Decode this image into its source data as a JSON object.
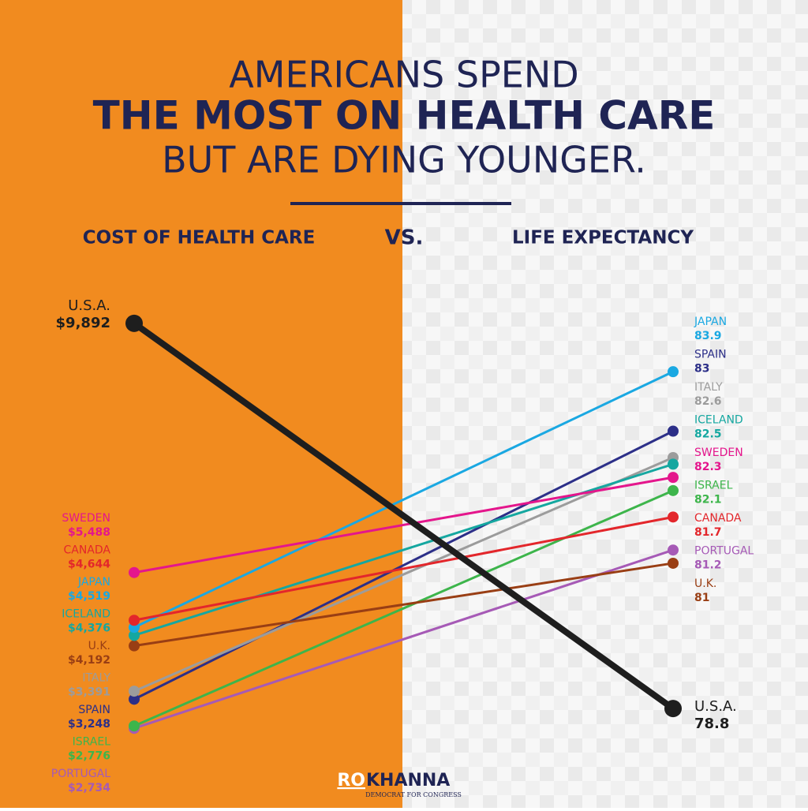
{
  "chart_data": {
    "type": "slope",
    "title_lines": [
      "AMERICANS SPEND",
      "THE MOST ON HEALTH CARE",
      "BUT ARE DYING YOUNGER."
    ],
    "columns": [
      "COST OF HEALTH CARE",
      "LIFE EXPECTANCY"
    ],
    "vs": "VS.",
    "ylim": [
      2500,
      10030
    ],
    "y2lim": [
      78.3,
      84.75
    ],
    "series": [
      {
        "name": "U.S.A.",
        "color": "#1e1e1e",
        "values": [
          9892,
          78.8
        ],
        "value_labels": [
          "$9,892",
          "78.8"
        ]
      },
      {
        "name": "SWEDEN",
        "color": "#e4168c",
        "values": [
          5488,
          82.3
        ],
        "value_labels": [
          "$5,488",
          "82.3"
        ]
      },
      {
        "name": "CANADA",
        "color": "#e3262b",
        "values": [
          4644,
          81.7
        ],
        "value_labels": [
          "$4,644",
          "81.7"
        ]
      },
      {
        "name": "JAPAN",
        "color": "#1aa8e2",
        "values": [
          4519,
          83.9
        ],
        "value_labels": [
          "$4,519",
          "83.9"
        ]
      },
      {
        "name": "ICELAND",
        "color": "#15a7a0",
        "values": [
          4376,
          82.5
        ],
        "value_labels": [
          "$4,376",
          "82.5"
        ]
      },
      {
        "name": "U.K.",
        "color": "#993e14",
        "values": [
          4192,
          81
        ],
        "value_labels": [
          "$4,192",
          "81"
        ]
      },
      {
        "name": "ITALY",
        "color": "#9c9c9c",
        "values": [
          3391,
          82.6
        ],
        "value_labels": [
          "$3,391",
          "82.6"
        ]
      },
      {
        "name": "SPAIN",
        "color": "#2c2f88",
        "values": [
          3248,
          83
        ],
        "value_labels": [
          "$3,248",
          "83"
        ]
      },
      {
        "name": "ISRAEL",
        "color": "#3db54b",
        "values": [
          2776,
          82.1
        ],
        "value_labels": [
          "$2,776",
          "82.1"
        ]
      },
      {
        "name": "PORTUGAL",
        "color": "#a65ab6",
        "values": [
          2734,
          81.2
        ],
        "value_labels": [
          "$2,734",
          "81.2"
        ]
      }
    ],
    "footer": {
      "brand_a": "RO",
      "brand_b": "KHANNA",
      "tagline": "DEMOCRAT FOR CONGRESS"
    }
  }
}
